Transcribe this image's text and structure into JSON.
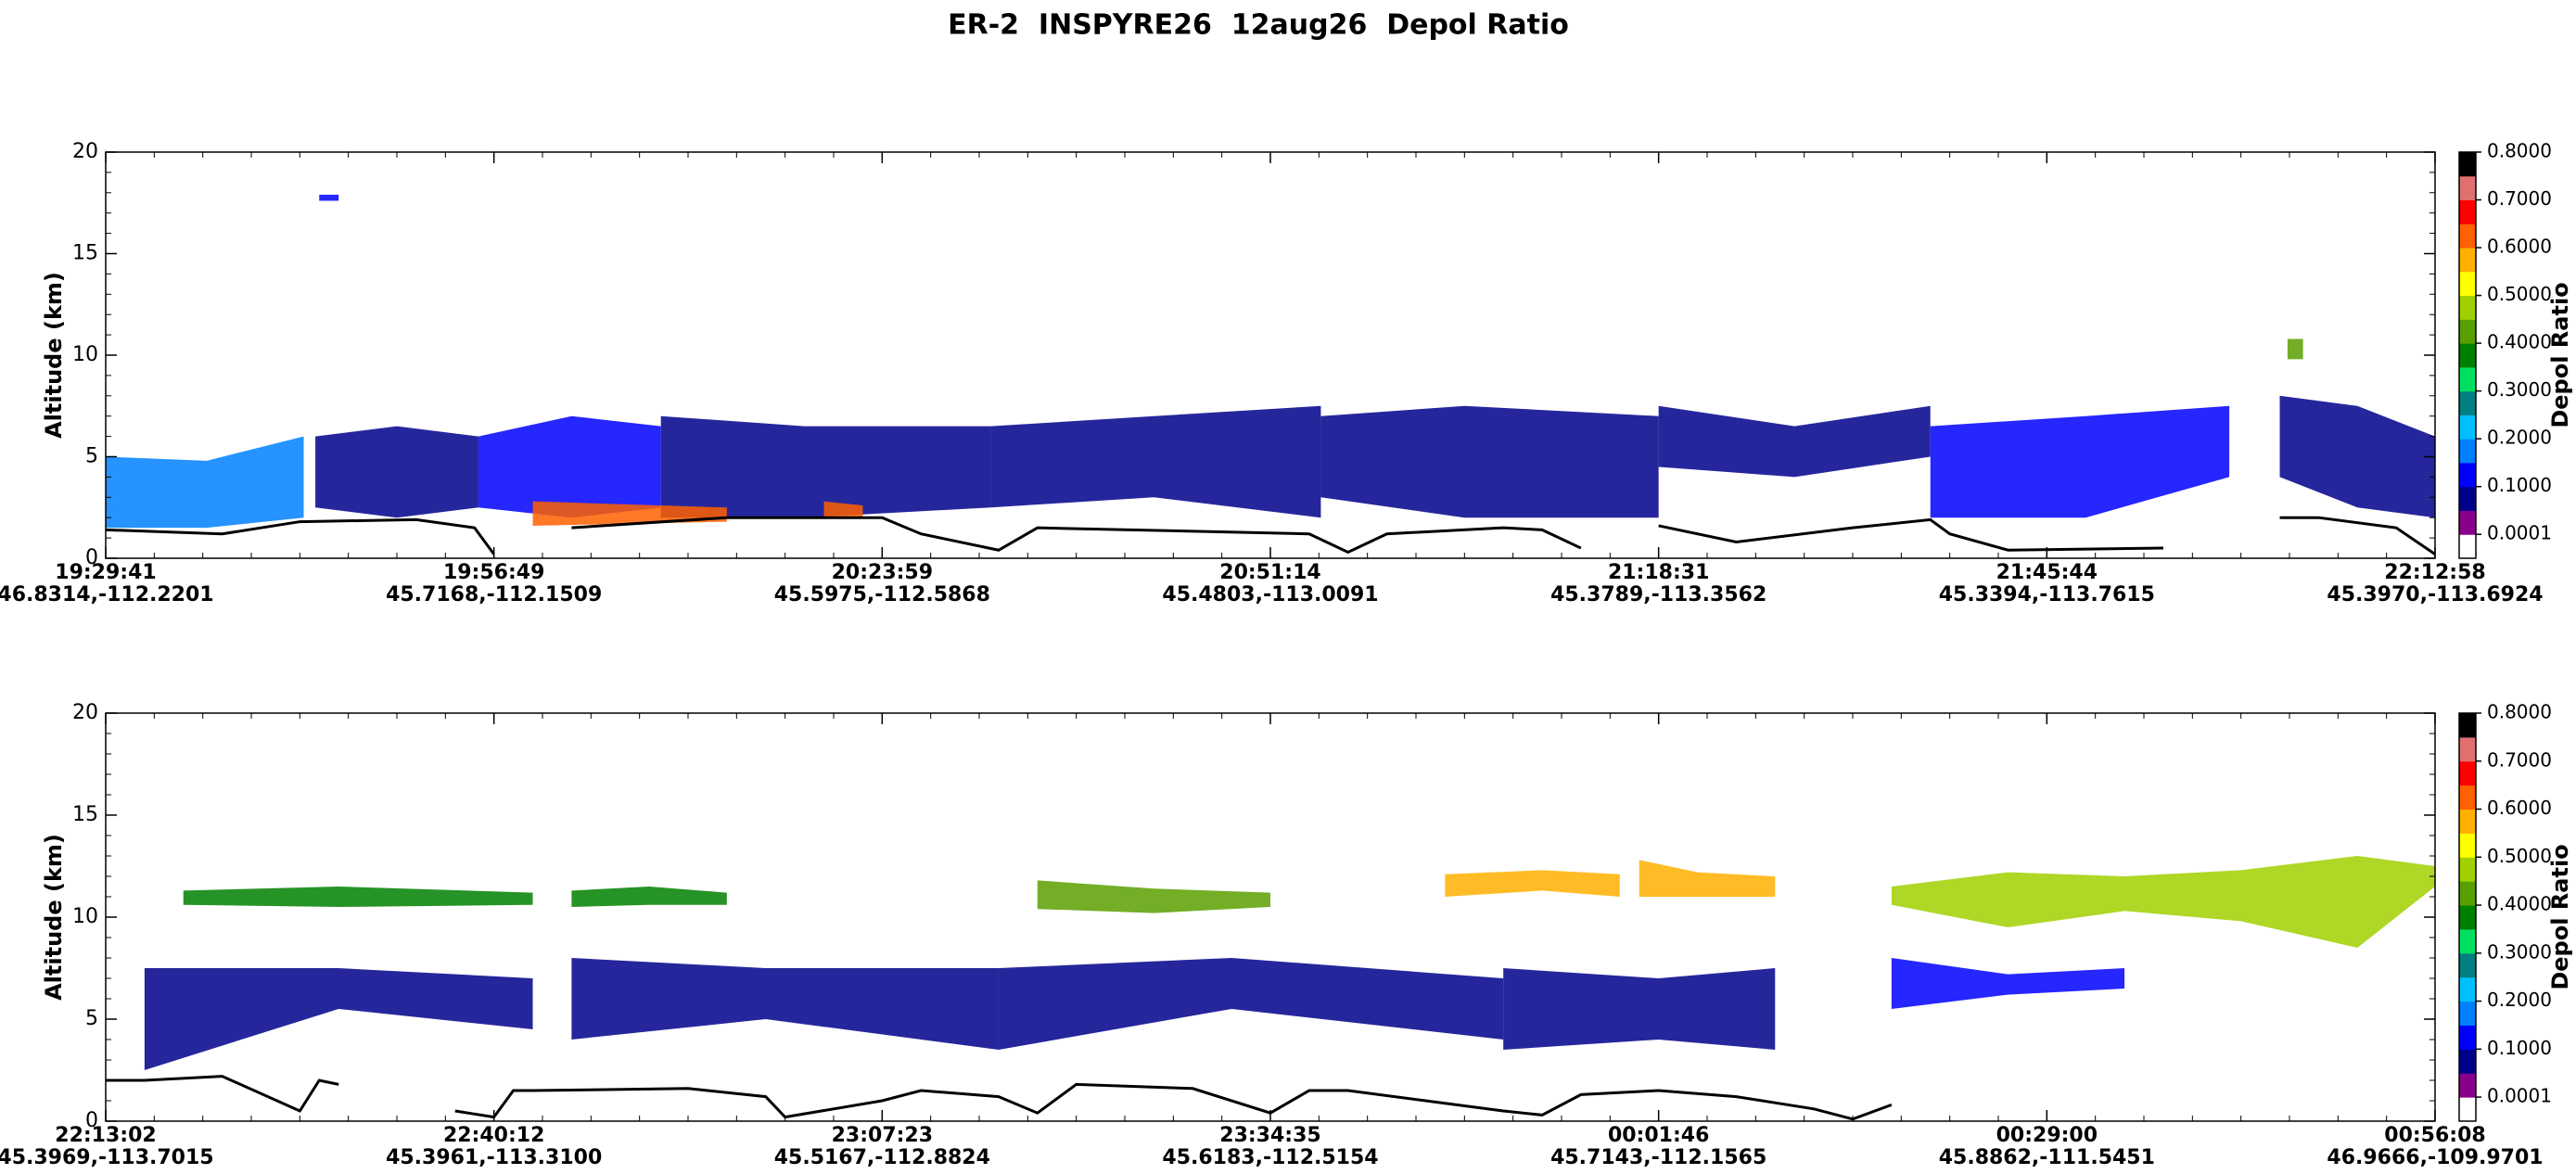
{
  "title": "ER-2  INSPYRE26  12aug26  Depol Ratio",
  "chart_data": [
    {
      "type": "curtain",
      "ylabel": "Altitude (km)",
      "colorbar_label": "Depol Ratio",
      "ylim": [
        0,
        20
      ],
      "yticks": [
        0,
        5,
        10,
        15,
        20
      ],
      "xlim": [
        0,
        6
      ],
      "xticks": [
        {
          "value": 0,
          "label": "19:29:41",
          "coords": "46.8314,-112.2201"
        },
        {
          "value": 1,
          "label": "19:56:49",
          "coords": "45.7168,-112.1509"
        },
        {
          "value": 2,
          "label": "20:23:59",
          "coords": "45.5975,-112.5868"
        },
        {
          "value": 3,
          "label": "20:51:14",
          "coords": "45.4803,-113.0091"
        },
        {
          "value": 4,
          "label": "21:18:31",
          "coords": "45.3789,-113.3562"
        },
        {
          "value": 5,
          "label": "21:45:44",
          "coords": "45.3394,-113.7615"
        },
        {
          "value": 6,
          "label": "22:12:58",
          "coords": "45.3970,-113.6924"
        }
      ],
      "clim": [
        -0.05,
        0.8
      ],
      "colormap": [
        "#ffffff",
        "#8b008b",
        "#00008b",
        "#0000ff",
        "#0080ff",
        "#00bfff",
        "#008080",
        "#00e060",
        "#008000",
        "#5aa000",
        "#a0d000",
        "#ffff00",
        "#ffb000",
        "#ff6000",
        "#ff0000",
        "#e07070",
        "#000000"
      ],
      "cticks": [
        0.0001,
        {
          "value": 0.1,
          "label": "0.1000"
        },
        {
          "value": 0.2,
          "label": "0.2000"
        },
        {
          "value": 0.3,
          "label": "0.3000"
        },
        {
          "value": 0.4,
          "label": "0.4000"
        },
        {
          "value": 0.5,
          "label": "0.5000"
        },
        {
          "value": 0.6,
          "label": "0.6000"
        },
        {
          "value": 0.7,
          "label": "0.7000"
        },
        {
          "value": 0.8,
          "label": "0.8000"
        }
      ],
      "layers": [
        {
          "x": [
            0,
            0.26,
            0.51
          ],
          "top": [
            5,
            4.8,
            6
          ],
          "bottom": [
            1.5,
            1.5,
            2
          ],
          "depol": 0.16
        },
        {
          "x": [
            0.54,
            0.75,
            0.96
          ],
          "top": [
            6,
            6.5,
            6
          ],
          "bottom": [
            2.5,
            2,
            2.5
          ],
          "depol": 0.08
        },
        {
          "x": [
            0.96,
            1.2,
            1.43
          ],
          "top": [
            6,
            7,
            6.5
          ],
          "bottom": [
            2.5,
            2,
            2.5
          ],
          "depol": 0.12
        },
        {
          "x": [
            1.43,
            1.8,
            2.28
          ],
          "top": [
            7,
            6.5,
            6.5
          ],
          "bottom": [
            2,
            2,
            2.5
          ],
          "depol": 0.08
        },
        {
          "x": [
            2.28,
            2.7,
            3.13
          ],
          "top": [
            6.5,
            7,
            7.5
          ],
          "bottom": [
            2.5,
            3,
            2
          ],
          "depol": 0.06
        },
        {
          "x": [
            3.13,
            3.5,
            4.0
          ],
          "top": [
            7,
            7.5,
            7
          ],
          "bottom": [
            3,
            2,
            2
          ],
          "depol": 0.08
        },
        {
          "x": [
            4.0,
            4.35,
            4.7
          ],
          "top": [
            7.5,
            6.5,
            7.5
          ],
          "bottom": [
            4.5,
            4,
            5
          ],
          "depol": 0.06
        },
        {
          "x": [
            4.7,
            5.1,
            5.47
          ],
          "top": [
            6.5,
            7,
            7.5
          ],
          "bottom": [
            2,
            2,
            4
          ],
          "depol": 0.14
        },
        {
          "x": [
            5.6,
            5.8,
            6
          ],
          "top": [
            8,
            7.5,
            6
          ],
          "bottom": [
            4,
            2.5,
            2
          ],
          "depol": 0.09
        },
        {
          "x": [
            0.55,
            0.6
          ],
          "top": [
            17.9,
            17.9
          ],
          "bottom": [
            17.6,
            17.6
          ],
          "depol": 0.1
        },
        {
          "x": [
            1.1,
            1.6
          ],
          "top": [
            2.8,
            2.5
          ],
          "bottom": [
            1.6,
            1.8
          ],
          "depol": 0.6
        },
        {
          "x": [
            1.85,
            1.95
          ],
          "top": [
            2.8,
            2.6
          ],
          "bottom": [
            2,
            2
          ],
          "depol": 0.6
        },
        {
          "x": [
            5.62,
            5.66
          ],
          "top": [
            10.8,
            10.8
          ],
          "bottom": [
            9.8,
            9.8
          ],
          "depol": 0.45
        }
      ],
      "surface": {
        "x": [
          0,
          0.3,
          0.5,
          0.8,
          0.95,
          1.0,
          1.05,
          1.2,
          1.6,
          2.0,
          2.1,
          2.3,
          2.4,
          3.1,
          3.2,
          3.3,
          3.6,
          3.7,
          3.8,
          3.9,
          4.0,
          4.2,
          4.5,
          4.7,
          4.75,
          4.9,
          5.3,
          5.5,
          5.6,
          5.7,
          5.9,
          6
        ],
        "values": [
          1.4,
          1.2,
          1.8,
          1.9,
          1.5,
          0.2,
          null,
          1.5,
          2,
          2,
          1.2,
          0.4,
          1.5,
          1.2,
          0.3,
          1.2,
          1.5,
          1.4,
          0.5,
          null,
          1.6,
          0.8,
          1.5,
          1.9,
          1.2,
          0.4,
          0.5,
          null,
          2,
          2,
          1.5,
          0.2
        ]
      }
    },
    {
      "type": "curtain",
      "ylabel": "Altitude (km)",
      "colorbar_label": "Depol Ratio",
      "ylim": [
        0,
        20
      ],
      "yticks": [
        0,
        5,
        10,
        15,
        20
      ],
      "xlim": [
        0,
        6
      ],
      "xticks": [
        {
          "value": 0,
          "label": "22:13:02",
          "coords": "45.3969,-113.7015"
        },
        {
          "value": 1,
          "label": "22:40:12",
          "coords": "45.3961,-113.3100"
        },
        {
          "value": 2,
          "label": "23:07:23",
          "coords": "45.5167,-112.8824"
        },
        {
          "value": 3,
          "label": "23:34:35",
          "coords": "45.6183,-112.5154"
        },
        {
          "value": 4,
          "label": "00:01:46",
          "coords": "45.7143,-112.1565"
        },
        {
          "value": 5,
          "label": "00:29:00",
          "coords": "45.8862,-111.5451"
        },
        {
          "value": 6,
          "label": "00:56:08",
          "coords": "46.9666,-109.9701"
        }
      ],
      "clim": [
        -0.05,
        0.8
      ],
      "colormap": [
        "#ffffff",
        "#8b008b",
        "#00008b",
        "#0000ff",
        "#0080ff",
        "#00bfff",
        "#008080",
        "#00e060",
        "#008000",
        "#5aa000",
        "#a0d000",
        "#ffff00",
        "#ffb000",
        "#ff6000",
        "#ff0000",
        "#e07070",
        "#000000"
      ],
      "cticks": [
        0.0001,
        {
          "value": 0.1,
          "label": "0.1000"
        },
        {
          "value": 0.2,
          "label": "0.2000"
        },
        {
          "value": 0.3,
          "label": "0.3000"
        },
        {
          "value": 0.4,
          "label": "0.4000"
        },
        {
          "value": 0.5,
          "label": "0.5000"
        },
        {
          "value": 0.6,
          "label": "0.6000"
        },
        {
          "value": 0.7,
          "label": "0.7000"
        },
        {
          "value": 0.8,
          "label": "0.8000"
        }
      ],
      "layers": [
        {
          "x": [
            0.2,
            0.6,
            1.1
          ],
          "top": [
            11.3,
            11.5,
            11.2
          ],
          "bottom": [
            10.6,
            10.5,
            10.6
          ],
          "depol": 0.38
        },
        {
          "x": [
            1.2,
            1.4,
            1.6
          ],
          "top": [
            11.3,
            11.5,
            11.2
          ],
          "bottom": [
            10.5,
            10.6,
            10.6
          ],
          "depol": 0.36
        },
        {
          "x": [
            2.4,
            2.7,
            3.0
          ],
          "top": [
            11.8,
            11.4,
            11.2
          ],
          "bottom": [
            10.4,
            10.2,
            10.5
          ],
          "depol": 0.4
        },
        {
          "x": [
            3.45,
            3.7,
            3.9
          ],
          "top": [
            12.1,
            12.3,
            12.1
          ],
          "bottom": [
            11,
            11.3,
            11
          ],
          "depol": 0.57
        },
        {
          "x": [
            3.95,
            4.1,
            4.3
          ],
          "top": [
            12.8,
            12.2,
            12
          ],
          "bottom": [
            11,
            11,
            11
          ],
          "depol": 0.55
        },
        {
          "x": [
            4.6,
            4.9,
            5.2,
            5.5,
            5.8,
            6
          ],
          "top": [
            11.5,
            12.2,
            12,
            12.3,
            13,
            12.5
          ],
          "bottom": [
            10.6,
            9.5,
            10.3,
            9.8,
            8.5,
            11.5
          ],
          "depol": 0.46
        },
        {
          "x": [
            0.1,
            0.6,
            1.1
          ],
          "top": [
            7.5,
            7.5,
            7
          ],
          "bottom": [
            2.5,
            5.5,
            4.5
          ],
          "depol": 0.09
        },
        {
          "x": [
            1.2,
            1.7,
            2.3
          ],
          "top": [
            8,
            7.5,
            7.5
          ],
          "bottom": [
            4,
            5,
            3.5
          ],
          "depol": 0.08
        },
        {
          "x": [
            2.3,
            2.9,
            3.6
          ],
          "top": [
            7.5,
            8,
            7
          ],
          "bottom": [
            3.5,
            5.5,
            4
          ],
          "depol": 0.07
        },
        {
          "x": [
            3.6,
            4.0,
            4.3
          ],
          "top": [
            7.5,
            7,
            7.5
          ],
          "bottom": [
            3.5,
            4,
            3.5
          ],
          "depol": 0.08
        },
        {
          "x": [
            4.6,
            4.9,
            5.2
          ],
          "top": [
            8,
            7.2,
            7.5
          ],
          "bottom": [
            5.5,
            6.2,
            6.5
          ],
          "depol": 0.1
        }
      ],
      "surface": {
        "x": [
          0,
          0.1,
          0.3,
          0.5,
          0.55,
          0.6,
          null,
          0.9,
          1.0,
          1.05,
          1.1,
          1.5,
          1.7,
          1.75,
          2.0,
          2.1,
          2.3,
          2.4,
          2.5,
          2.8,
          3.0,
          3.1,
          3.2,
          3.4,
          3.6,
          3.7,
          3.8,
          4.0,
          4.2,
          4.4,
          4.5,
          4.6
        ],
        "values": [
          2,
          2,
          2.2,
          0.5,
          2,
          1.8,
          null,
          0.5,
          0.2,
          1.5,
          1.5,
          1.6,
          1.2,
          0.2,
          1,
          1.5,
          1.2,
          0.4,
          1.8,
          1.6,
          0.4,
          1.5,
          1.5,
          1,
          0.5,
          0.3,
          1.3,
          1.5,
          1.2,
          0.6,
          0.1,
          0.8
        ]
      }
    }
  ]
}
